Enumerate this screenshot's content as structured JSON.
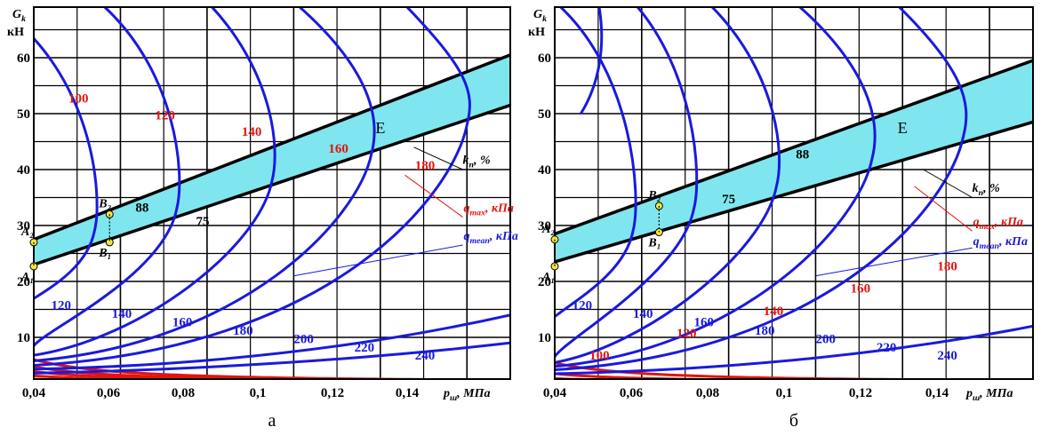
{
  "colors": {
    "red": "#e2140f",
    "blue": "#1a1adc",
    "band": "#7fe6ef",
    "grid": "#000000",
    "point": "#f4e542"
  },
  "chart_data": [
    {
      "type": "line",
      "panel_label": "а",
      "xlabel": "p_ш, МПа",
      "ylabel": "G_k, кН",
      "xlim": [
        0.04,
        0.15
      ],
      "ylim": [
        2,
        68
      ],
      "xticks": [
        "0,04",
        "0,06",
        "0,08",
        "0,1",
        "0,12",
        "0,14"
      ],
      "yticks": [
        "10",
        "20",
        "30",
        "40",
        "50",
        "60"
      ],
      "legend_labels": {
        "k": "k_п, %",
        "q_max": "q_max, кПа",
        "q_mean": "q_mean, кПа"
      },
      "band": {
        "label": "Е",
        "lower": [
          [
            0.04,
            23.0
          ],
          [
            0.15,
            51.5
          ]
        ],
        "upper": [
          [
            0.04,
            27.5
          ],
          [
            0.15,
            60.5
          ]
        ],
        "k_labels": [
          "88",
          "75"
        ]
      },
      "points": [
        {
          "label": "A₂",
          "x": 0.04,
          "y": 27.0
        },
        {
          "label": "A₁",
          "x": 0.04,
          "y": 22.7
        },
        {
          "label": "B₂",
          "x": 0.0575,
          "y": 32.0
        },
        {
          "label": "B₁",
          "x": 0.0575,
          "y": 27.0
        }
      ],
      "red_series": [
        {
          "name": "100",
          "k": 1.14,
          "label": "100"
        },
        {
          "name": "120",
          "k": 2.5,
          "label": "120"
        },
        {
          "name": "140",
          "k": 4.15,
          "label": "140"
        },
        {
          "name": "160",
          "k": 6.0,
          "label": "160"
        },
        {
          "name": "180",
          "k": 8.8,
          "label": "180"
        }
      ],
      "blue_series": [
        {
          "name": "120",
          "tip": [
            0.054,
            29
          ],
          "top": 0.03,
          "bottom": [
            0.04,
            11.5
          ],
          "label": "120"
        },
        {
          "name": "140",
          "tip": [
            0.073,
            33
          ],
          "top": 0.055,
          "bottom": [
            0.04,
            8.5
          ],
          "label": "140"
        },
        {
          "name": "160",
          "tip": [
            0.095,
            38
          ],
          "top": 0.08,
          "bottom": [
            0.04,
            6.8
          ],
          "label": "160"
        },
        {
          "name": "180",
          "tip": [
            0.118,
            43
          ],
          "top": 0.1,
          "bottom": [
            0.04,
            5.8
          ],
          "label": "180"
        },
        {
          "name": "200",
          "tip": [
            0.14,
            48
          ],
          "top": 0.125,
          "bottom": [
            0.04,
            5.0
          ],
          "label": "200"
        },
        {
          "name": "220",
          "tip": null,
          "top": null,
          "bottom": [
            0.04,
            4.3
          ],
          "end": [
            0.15,
            14
          ],
          "label": "220"
        },
        {
          "name": "240",
          "tip": null,
          "top": null,
          "bottom": [
            0.04,
            3.6
          ],
          "end": [
            0.15,
            9
          ],
          "label": "240"
        }
      ]
    },
    {
      "type": "line",
      "panel_label": "б",
      "xlabel": "p_ш, МПа",
      "ylabel": "G_k, кН",
      "xlim": [
        0.04,
        0.15
      ],
      "ylim": [
        2,
        68
      ],
      "xticks": [
        "0,04",
        "0,06",
        "0,08",
        "0,1",
        "0,12",
        "0,14"
      ],
      "yticks": [
        "10",
        "20",
        "30",
        "40",
        "50",
        "60"
      ],
      "legend_labels": {
        "k": "k_п, %",
        "q_max": "q_max, кПа",
        "q_mean": "q_mean, кПа"
      },
      "band": {
        "label": "Е",
        "lower": [
          [
            0.04,
            23.5
          ],
          [
            0.15,
            48.5
          ]
        ],
        "upper": [
          [
            0.04,
            28.5
          ],
          [
            0.15,
            59.5
          ]
        ],
        "k_labels": [
          "88",
          "75"
        ]
      },
      "points": [
        {
          "label": "A₂",
          "x": 0.04,
          "y": 27.5
        },
        {
          "label": "A₁",
          "x": 0.04,
          "y": 22.7
        },
        {
          "label": "B₂",
          "x": 0.064,
          "y": 33.5
        },
        {
          "label": "B₁",
          "x": 0.064,
          "y": 28.8
        }
      ],
      "red_series": [
        {
          "name": "100",
          "k": 0.28,
          "label": "100"
        },
        {
          "name": "120",
          "k": 0.65,
          "label": "120"
        },
        {
          "name": "140",
          "k": 1.4,
          "label": "140"
        },
        {
          "name": "160",
          "k": 3.3,
          "label": "160"
        },
        {
          "name": "180",
          "k": 7.5,
          "label": "180"
        }
      ],
      "blue_series": [
        {
          "name": "120",
          "tip": null,
          "top": null,
          "bottom": [
            0.04,
            58
          ],
          "label": "120"
        },
        {
          "name": "140",
          "tip": [
            0.058,
            29
          ],
          "top": 0.04,
          "bottom": [
            0.04,
            9.0
          ],
          "label": "140"
        },
        {
          "name": "160",
          "tip": [
            0.072,
            33
          ],
          "top": 0.058,
          "bottom": [
            0.04,
            6.5
          ],
          "label": "160"
        },
        {
          "name": "180",
          "tip": [
            0.091,
            37
          ],
          "top": 0.075,
          "bottom": [
            0.04,
            5.5
          ],
          "label": "180"
        },
        {
          "name": "200",
          "tip": [
            0.113,
            42
          ],
          "top": 0.095,
          "bottom": [
            0.04,
            4.8
          ],
          "label": "200"
        },
        {
          "name": "220",
          "tip": [
            0.134,
            46
          ],
          "top": 0.118,
          "bottom": [
            0.04,
            4.2
          ],
          "label": "220"
        },
        {
          "name": "240",
          "tip": null,
          "top": null,
          "bottom": [
            0.04,
            3.5
          ],
          "end": [
            0.15,
            12
          ],
          "label": "240"
        }
      ]
    }
  ]
}
